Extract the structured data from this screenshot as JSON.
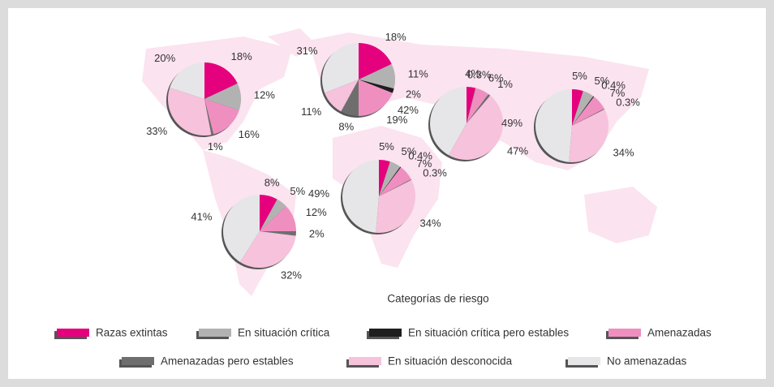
{
  "chart_data": [
    {
      "type": "pie",
      "values": [
        18,
        12,
        null,
        16,
        1,
        33,
        20
      ],
      "value_labels": [
        "18%",
        "12%",
        null,
        "16%",
        "1%",
        "33%",
        "20%"
      ]
    },
    {
      "type": "pie",
      "values": [
        18,
        11,
        2,
        19,
        8,
        11,
        31
      ],
      "value_labels": [
        "18%",
        "11%",
        "2%",
        "19%",
        "8%",
        "11%",
        "31%"
      ]
    },
    {
      "type": "pie",
      "values": [
        4,
        0.3,
        null,
        6,
        1,
        47,
        42
      ],
      "value_labels": [
        "4%",
        "0.3%",
        null,
        "6%",
        "1%",
        "47%",
        "42%"
      ]
    },
    {
      "type": "pie",
      "values": [
        5,
        5,
        0.4,
        7,
        0.3,
        34,
        49
      ],
      "value_labels": [
        "5%",
        "5%",
        "0.4%",
        "7%",
        "0.3%",
        "34%",
        "49%"
      ]
    },
    {
      "type": "pie",
      "values": [
        5,
        5,
        0.4,
        7,
        0.3,
        34,
        49
      ],
      "value_labels": [
        "5%",
        "5%",
        "0.4%",
        "7%",
        "0.3%",
        "34%",
        "49%"
      ]
    },
    {
      "type": "pie",
      "values": [
        8,
        5,
        null,
        12,
        2,
        32,
        41
      ],
      "value_labels": [
        "8%",
        "5%",
        null,
        "12%",
        "2%",
        "32%",
        "41%"
      ]
    }
  ],
  "legend": {
    "title": "Categorías de riesgo",
    "items": [
      {
        "name": "Razas extintas",
        "color": "#e5007d"
      },
      {
        "name": "En situación crítica",
        "color": "#b2b2b2"
      },
      {
        "name": "En situación crítica pero estables",
        "color": "#1e1e1e"
      },
      {
        "name": "Amenazadas",
        "color": "#ef8fc0"
      },
      {
        "name": "Amenazadas pero estables",
        "color": "#6e6e6e"
      },
      {
        "name": "En situación desconocida",
        "color": "#f6c2dc"
      },
      {
        "name": "No amenazadas",
        "color": "#e6e6e8"
      }
    ]
  }
}
